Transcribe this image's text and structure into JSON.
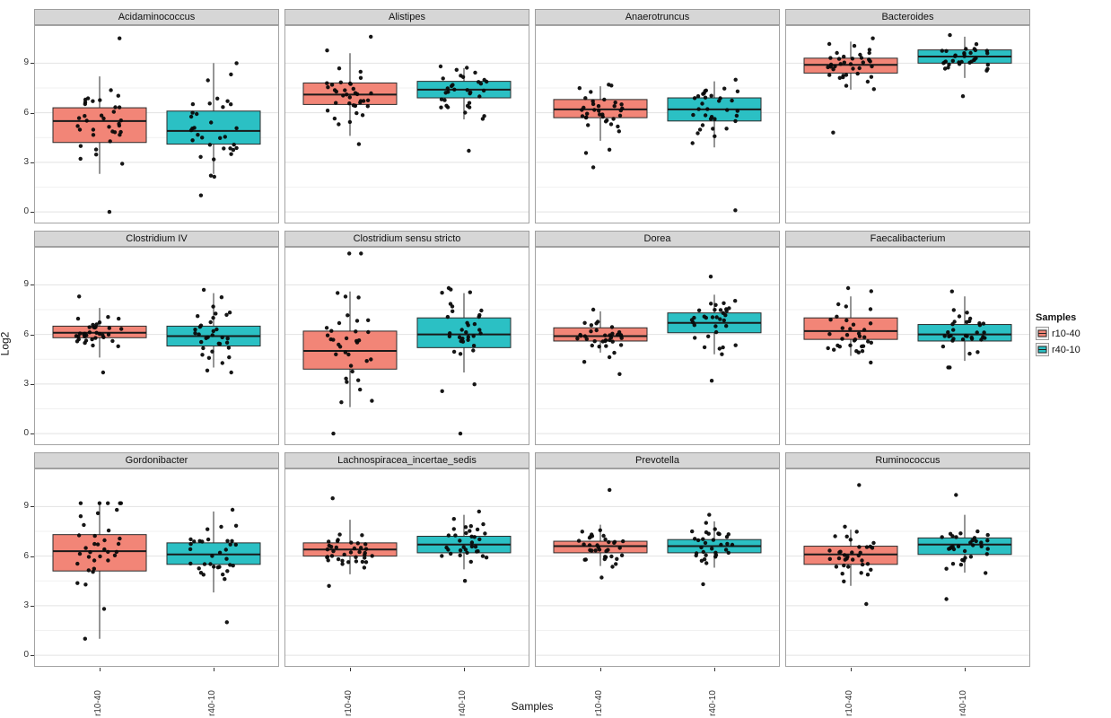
{
  "chart_data": {
    "type": "boxplot",
    "facet_grid": [
      3,
      4
    ],
    "title": "",
    "ylabel": "Log2",
    "xlabel": "Samples",
    "categories": [
      "r10-40",
      "r40-10"
    ],
    "y_ticks": [
      0,
      3,
      6,
      9
    ],
    "y_minor": [
      1.5,
      4.5,
      7.5
    ],
    "ylim": [
      -0.7,
      11.3
    ],
    "grid": "on",
    "group_colors": {
      "r10-40": "#F28577",
      "r40-10": "#2BC0C4"
    },
    "legend": {
      "title": "Samples",
      "position": "right",
      "entries": [
        {
          "label": "r10-40",
          "color": "#F28577"
        },
        {
          "label": "r40-10",
          "color": "#2BC0C4"
        }
      ]
    },
    "facets": [
      {
        "name": "Acidaminococcus",
        "boxes": [
          {
            "group": "r10-40",
            "whisker_low": 2.3,
            "q1": 4.2,
            "median": 5.5,
            "q3": 6.3,
            "whisker_high": 8.2,
            "points_min": 0.0,
            "points_max": 10.5,
            "n_points": 36
          },
          {
            "group": "r40-10",
            "whisker_low": 2.3,
            "q1": 4.1,
            "median": 4.9,
            "q3": 6.1,
            "whisker_high": 9.0,
            "points_min": 1.0,
            "points_max": 9.0,
            "n_points": 34
          }
        ]
      },
      {
        "name": "Alistipes",
        "boxes": [
          {
            "group": "r10-40",
            "whisker_low": 4.6,
            "q1": 6.5,
            "median": 7.1,
            "q3": 7.8,
            "whisker_high": 9.6,
            "points_min": 4.1,
            "points_max": 10.6,
            "n_points": 38
          },
          {
            "group": "r40-10",
            "whisker_low": 5.6,
            "q1": 6.9,
            "median": 7.4,
            "q3": 7.9,
            "whisker_high": 8.7,
            "points_min": 3.7,
            "points_max": 8.8,
            "n_points": 34
          }
        ]
      },
      {
        "name": "Anaerotruncus",
        "boxes": [
          {
            "group": "r10-40",
            "whisker_low": 4.3,
            "q1": 5.7,
            "median": 6.2,
            "q3": 6.8,
            "whisker_high": 7.6,
            "points_min": 2.7,
            "points_max": 7.7,
            "n_points": 36
          },
          {
            "group": "r40-10",
            "whisker_low": 3.9,
            "q1": 5.5,
            "median": 6.2,
            "q3": 6.9,
            "whisker_high": 7.9,
            "points_min": 0.1,
            "points_max": 8.0,
            "n_points": 34
          }
        ]
      },
      {
        "name": "Bacteroides",
        "boxes": [
          {
            "group": "r10-40",
            "whisker_low": 7.4,
            "q1": 8.4,
            "median": 8.9,
            "q3": 9.3,
            "whisker_high": 10.3,
            "points_min": 4.8,
            "points_max": 10.5,
            "n_points": 38
          },
          {
            "group": "r40-10",
            "whisker_low": 8.1,
            "q1": 9.0,
            "median": 9.4,
            "q3": 9.8,
            "whisker_high": 10.6,
            "points_min": 7.0,
            "points_max": 10.7,
            "n_points": 34
          }
        ]
      },
      {
        "name": "Clostridium IV",
        "boxes": [
          {
            "group": "r10-40",
            "whisker_low": 4.6,
            "q1": 5.8,
            "median": 6.1,
            "q3": 6.5,
            "whisker_high": 7.6,
            "points_min": 3.7,
            "points_max": 8.3,
            "n_points": 36
          },
          {
            "group": "r40-10",
            "whisker_low": 4.0,
            "q1": 5.3,
            "median": 5.9,
            "q3": 6.5,
            "whisker_high": 8.5,
            "points_min": 3.7,
            "points_max": 8.7,
            "n_points": 34
          }
        ]
      },
      {
        "name": "Clostridium sensu stricto",
        "boxes": [
          {
            "group": "r10-40",
            "whisker_low": 1.6,
            "q1": 3.9,
            "median": 5.0,
            "q3": 6.2,
            "whisker_high": 8.6,
            "points_min": 0.0,
            "points_max": 10.9,
            "n_points": 36
          },
          {
            "group": "r40-10",
            "whisker_low": 3.7,
            "q1": 5.2,
            "median": 6.0,
            "q3": 7.0,
            "whisker_high": 8.5,
            "points_min": 0.0,
            "points_max": 8.8,
            "n_points": 34
          }
        ]
      },
      {
        "name": "Dorea",
        "boxes": [
          {
            "group": "r10-40",
            "whisker_low": 4.9,
            "q1": 5.6,
            "median": 5.9,
            "q3": 6.4,
            "whisker_high": 7.4,
            "points_min": 3.6,
            "points_max": 7.5,
            "n_points": 36
          },
          {
            "group": "r40-10",
            "whisker_low": 4.8,
            "q1": 6.1,
            "median": 6.7,
            "q3": 7.3,
            "whisker_high": 8.4,
            "points_min": 3.2,
            "points_max": 9.5,
            "n_points": 34
          }
        ]
      },
      {
        "name": "Faecalibacterium",
        "boxes": [
          {
            "group": "r10-40",
            "whisker_low": 4.7,
            "q1": 5.7,
            "median": 6.2,
            "q3": 7.0,
            "whisker_high": 8.3,
            "points_min": 4.3,
            "points_max": 8.8,
            "n_points": 34
          },
          {
            "group": "r40-10",
            "whisker_low": 4.4,
            "q1": 5.6,
            "median": 6.0,
            "q3": 6.6,
            "whisker_high": 8.3,
            "points_min": 4.0,
            "points_max": 8.6,
            "n_points": 34
          }
        ]
      },
      {
        "name": "Gordonibacter",
        "boxes": [
          {
            "group": "r10-40",
            "whisker_low": 1.0,
            "q1": 5.1,
            "median": 6.3,
            "q3": 7.3,
            "whisker_high": 9.2,
            "points_min": 1.0,
            "points_max": 9.2,
            "n_points": 36
          },
          {
            "group": "r40-10",
            "whisker_low": 3.8,
            "q1": 5.5,
            "median": 6.1,
            "q3": 6.8,
            "whisker_high": 8.7,
            "points_min": 2.0,
            "points_max": 8.8,
            "n_points": 34
          }
        ]
      },
      {
        "name": "Lachnospiracea_incertae_sedis",
        "boxes": [
          {
            "group": "r10-40",
            "whisker_low": 4.9,
            "q1": 6.0,
            "median": 6.4,
            "q3": 6.8,
            "whisker_high": 8.2,
            "points_min": 4.2,
            "points_max": 9.5,
            "n_points": 38
          },
          {
            "group": "r40-10",
            "whisker_low": 5.2,
            "q1": 6.2,
            "median": 6.7,
            "q3": 7.2,
            "whisker_high": 8.5,
            "points_min": 4.5,
            "points_max": 8.7,
            "n_points": 34
          }
        ]
      },
      {
        "name": "Prevotella",
        "boxes": [
          {
            "group": "r10-40",
            "whisker_low": 5.4,
            "q1": 6.2,
            "median": 6.6,
            "q3": 6.9,
            "whisker_high": 7.9,
            "points_min": 4.7,
            "points_max": 10.0,
            "n_points": 36
          },
          {
            "group": "r40-10",
            "whisker_low": 5.3,
            "q1": 6.2,
            "median": 6.6,
            "q3": 7.0,
            "whisker_high": 8.1,
            "points_min": 4.3,
            "points_max": 8.5,
            "n_points": 34
          }
        ]
      },
      {
        "name": "Ruminococcus",
        "boxes": [
          {
            "group": "r10-40",
            "whisker_low": 4.2,
            "q1": 5.5,
            "median": 6.1,
            "q3": 6.6,
            "whisker_high": 7.6,
            "points_min": 3.1,
            "points_max": 10.3,
            "n_points": 36
          },
          {
            "group": "r40-10",
            "whisker_low": 5.0,
            "q1": 6.1,
            "median": 6.7,
            "q3": 7.1,
            "whisker_high": 8.5,
            "points_min": 3.4,
            "points_max": 9.7,
            "n_points": 34
          }
        ]
      }
    ]
  }
}
